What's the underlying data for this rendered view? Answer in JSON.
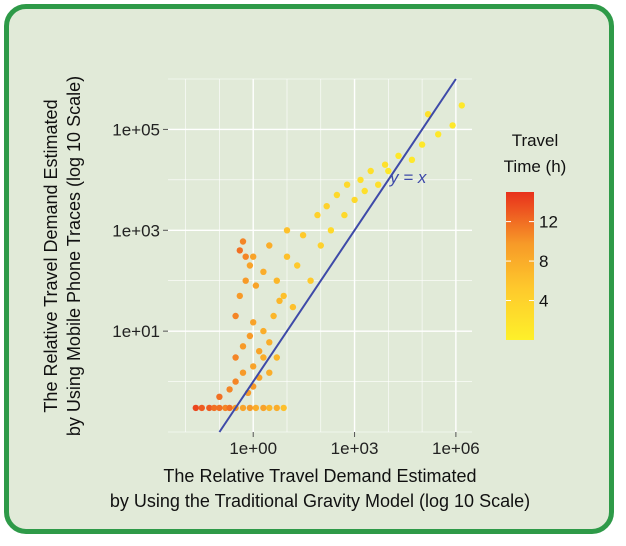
{
  "chart_data": {
    "type": "scatter",
    "title": "",
    "xlabel_lines": [
      "The Relative Travel Demand Estimated",
      "by Using the Traditional Gravity Model (log 10 Scale)"
    ],
    "ylabel_lines": [
      "The Relative Travel Demand Estimated",
      "by Using Mobile Phone Traces (log 10 Scale)"
    ],
    "x_scale": "log10",
    "y_scale": "log10",
    "xlim": [
      0.003,
      3000000
    ],
    "ylim": [
      0.1,
      1000000
    ],
    "x_ticks": [
      1,
      1000,
      1000000
    ],
    "x_tick_labels": [
      "1e+00",
      "1e+03",
      "1e+06"
    ],
    "y_ticks": [
      10,
      1000,
      100000
    ],
    "y_tick_labels": [
      "1e+01",
      "1e+03",
      "1e+05"
    ],
    "grid": true,
    "reference_line": {
      "label": "y = x",
      "slope": 1,
      "intercept": 0,
      "color": "#3e4aa8"
    },
    "color_scale": {
      "title_lines": [
        "Travel",
        "Time (h)"
      ],
      "min": 0,
      "max": 15,
      "ticks": [
        4,
        8,
        12
      ],
      "tick_labels": [
        "4",
        "8",
        "12"
      ],
      "low_color": "#fef02a",
      "high_color": "#e8311c"
    },
    "legend_position": "right",
    "series": [
      {
        "description_points": "approx. representative sample of the plotted cloud (x, y, travel time h)",
        "points": [
          [
            0.02,
            0.3,
            14
          ],
          [
            0.03,
            0.3,
            13
          ],
          [
            0.05,
            0.3,
            13
          ],
          [
            0.07,
            0.3,
            12
          ],
          [
            0.1,
            0.3,
            12
          ],
          [
            0.15,
            0.3,
            11
          ],
          [
            0.2,
            0.3,
            12
          ],
          [
            0.3,
            0.3,
            10
          ],
          [
            0.5,
            0.3,
            9
          ],
          [
            0.8,
            0.3,
            10
          ],
          [
            1.2,
            0.3,
            8
          ],
          [
            2,
            0.3,
            9
          ],
          [
            3,
            0.3,
            7
          ],
          [
            5,
            0.3,
            8
          ],
          [
            8,
            0.3,
            6
          ],
          [
            0.1,
            0.5,
            12
          ],
          [
            0.2,
            0.7,
            11
          ],
          [
            0.3,
            1,
            11
          ],
          [
            0.5,
            1.5,
            10
          ],
          [
            0.7,
            0.6,
            10
          ],
          [
            1,
            2,
            9
          ],
          [
            1,
            0.8,
            10
          ],
          [
            1.5,
            1.2,
            9
          ],
          [
            2,
            3,
            8
          ],
          [
            3,
            1.5,
            8
          ],
          [
            0.3,
            3,
            11
          ],
          [
            0.5,
            5,
            10
          ],
          [
            0.8,
            8,
            10
          ],
          [
            1,
            15,
            9
          ],
          [
            1.5,
            4,
            9
          ],
          [
            2,
            10,
            8
          ],
          [
            3,
            6,
            8
          ],
          [
            4,
            20,
            7
          ],
          [
            5,
            3,
            7
          ],
          [
            6,
            40,
            7
          ],
          [
            0.3,
            20,
            11
          ],
          [
            0.4,
            50,
            10
          ],
          [
            0.6,
            100,
            10
          ],
          [
            0.8,
            200,
            9
          ],
          [
            1,
            300,
            9
          ],
          [
            0.4,
            400,
            12
          ],
          [
            0.5,
            600,
            11
          ],
          [
            0.6,
            300,
            11
          ],
          [
            1.2,
            80,
            9
          ],
          [
            2,
            150,
            8
          ],
          [
            3,
            500,
            8
          ],
          [
            5,
            100,
            7
          ],
          [
            8,
            50,
            6
          ],
          [
            10,
            300,
            6
          ],
          [
            15,
            30,
            6
          ],
          [
            10,
            1000,
            6
          ],
          [
            20,
            200,
            5
          ],
          [
            30,
            800,
            5
          ],
          [
            50,
            100,
            5
          ],
          [
            80,
            2000,
            4
          ],
          [
            100,
            500,
            4
          ],
          [
            150,
            3000,
            4
          ],
          [
            200,
            1000,
            3
          ],
          [
            300,
            5000,
            3
          ],
          [
            500,
            2000,
            3
          ],
          [
            600,
            8000,
            3
          ],
          [
            1000,
            4000,
            3
          ],
          [
            1500,
            10000,
            2
          ],
          [
            2000,
            6000,
            2
          ],
          [
            3000,
            15000,
            2
          ],
          [
            5000,
            8000,
            2
          ],
          [
            8000,
            20000,
            2
          ],
          [
            10000,
            15000,
            1
          ],
          [
            20000,
            30000,
            1
          ],
          [
            50000,
            25000,
            1
          ],
          [
            100000,
            50000,
            1
          ],
          [
            300000,
            80000,
            1
          ],
          [
            800000,
            120000,
            1
          ],
          [
            1500000,
            300000,
            1
          ],
          [
            150000,
            200000,
            2
          ]
        ]
      }
    ]
  }
}
